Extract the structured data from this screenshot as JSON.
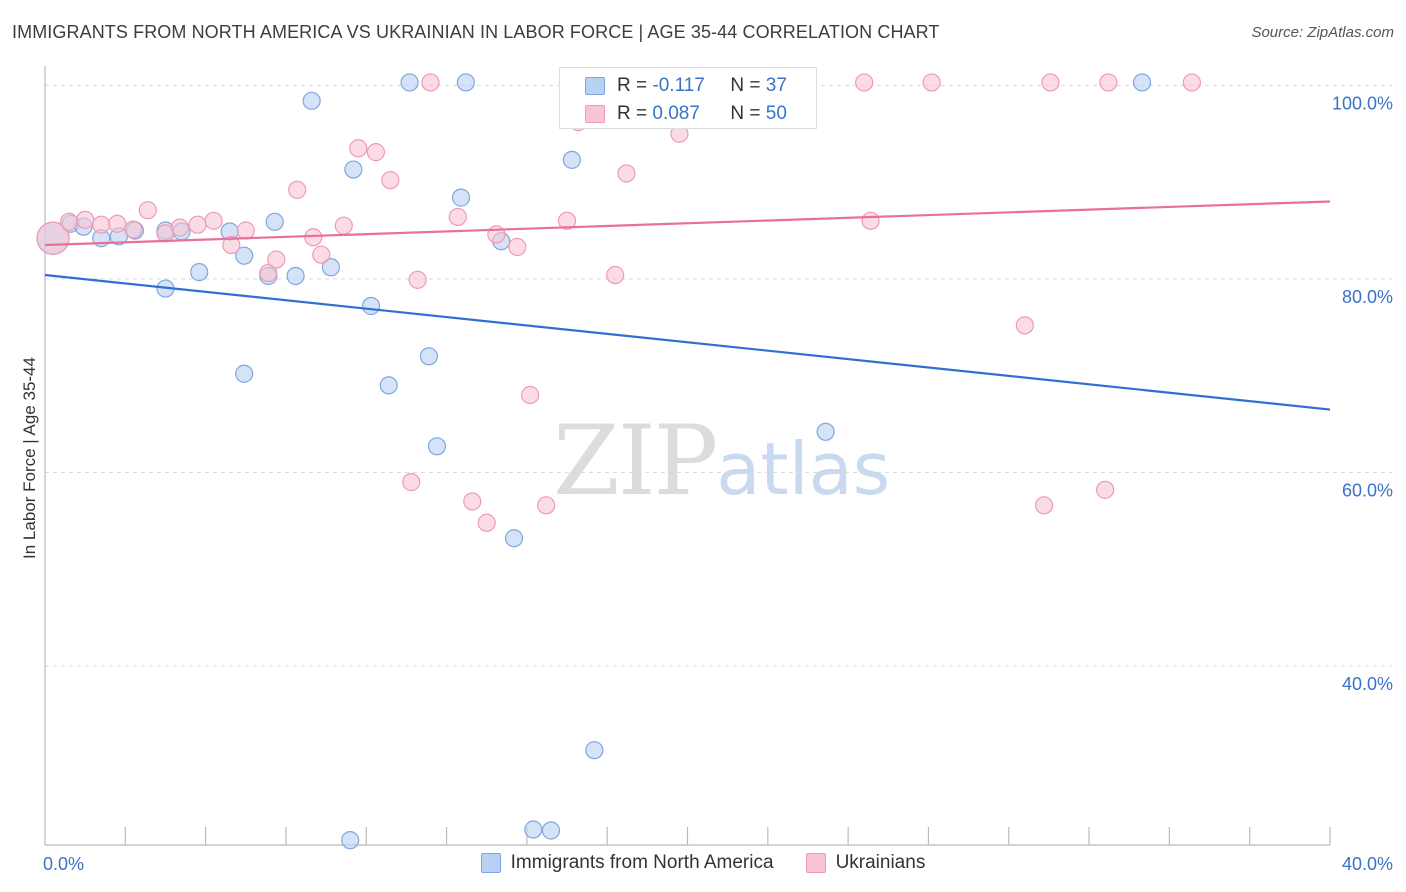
{
  "title": "IMMIGRANTS FROM NORTH AMERICA VS UKRAINIAN IN LABOR FORCE | AGE 35-44 CORRELATION CHART",
  "source": "Source: ZipAtlas.com",
  "watermark": {
    "zip": "ZIP",
    "atlas": "atlas"
  },
  "legend": {
    "r_label": "R =",
    "n_label": "N =",
    "series1": {
      "r": "-0.117",
      "n": "37"
    },
    "series2": {
      "r": "0.087",
      "n": "50"
    }
  },
  "colors": {
    "blue_fill": "#b8d0f2",
    "blue_stroke": "#7fa7de",
    "blue_line": "#2f6fd0",
    "pink_fill": "#f8c5d3",
    "pink_stroke": "#ef9ab5",
    "pink_line": "#e8709a",
    "axis_text": "#3a72c8",
    "grid": "#d8d8d8"
  },
  "chart_data": {
    "type": "scatter",
    "title": "IMMIGRANTS FROM NORTH AMERICA VS UKRAINIAN IN LABOR FORCE | AGE 35-44 CORRELATION CHART",
    "xlabel": "",
    "ylabel": "In Labor Force | Age 35-44",
    "xlim": [
      0,
      40
    ],
    "ylim": [
      21.5,
      102
    ],
    "x_tick_labels": [
      {
        "value": 0,
        "label": "0.0%"
      },
      {
        "value": 40,
        "label": "40.0%"
      }
    ],
    "y_ticks": [
      {
        "value": 100,
        "label": "100.0%"
      },
      {
        "value": 80,
        "label": "80.0%"
      },
      {
        "value": 60,
        "label": "60.0%"
      },
      {
        "value": 40,
        "label": "40.0%"
      }
    ],
    "grid": true,
    "series": [
      {
        "name": "Immigrants from North America",
        "color": "blue",
        "trend": {
          "x": [
            0,
            40
          ],
          "y": [
            80.4,
            66.5
          ]
        },
        "points": [
          {
            "x": 0.25,
            "y": 84.2,
            "big": true
          },
          {
            "x": 0.8,
            "y": 85.7
          },
          {
            "x": 1.2,
            "y": 85.4
          },
          {
            "x": 1.75,
            "y": 84.2
          },
          {
            "x": 2.3,
            "y": 84.4
          },
          {
            "x": 2.8,
            "y": 85.0
          },
          {
            "x": 3.75,
            "y": 85.0
          },
          {
            "x": 4.25,
            "y": 84.9
          },
          {
            "x": 3.75,
            "y": 79.0
          },
          {
            "x": 4.8,
            "y": 80.7
          },
          {
            "x": 5.75,
            "y": 84.9
          },
          {
            "x": 6.2,
            "y": 70.2
          },
          {
            "x": 6.2,
            "y": 82.4
          },
          {
            "x": 6.95,
            "y": 80.3
          },
          {
            "x": 7.15,
            "y": 85.9
          },
          {
            "x": 7.8,
            "y": 80.3
          },
          {
            "x": 8.3,
            "y": 98.4
          },
          {
            "x": 8.9,
            "y": 81.2
          },
          {
            "x": 9.5,
            "y": 22.0
          },
          {
            "x": 9.6,
            "y": 91.3
          },
          {
            "x": 10.15,
            "y": 77.2
          },
          {
            "x": 10.7,
            "y": 69.0
          },
          {
            "x": 11.35,
            "y": 100.3
          },
          {
            "x": 11.95,
            "y": 72.0
          },
          {
            "x": 12.2,
            "y": 62.7
          },
          {
            "x": 12.95,
            "y": 88.4
          },
          {
            "x": 13.1,
            "y": 100.3
          },
          {
            "x": 14.2,
            "y": 83.9
          },
          {
            "x": 14.6,
            "y": 53.2
          },
          {
            "x": 15.2,
            "y": 23.1
          },
          {
            "x": 15.75,
            "y": 23.0
          },
          {
            "x": 16.4,
            "y": 92.3
          },
          {
            "x": 17.1,
            "y": 31.3
          },
          {
            "x": 21.4,
            "y": 100.3
          },
          {
            "x": 24.3,
            "y": 64.2
          },
          {
            "x": 34.15,
            "y": 100.3
          },
          {
            "x": 22.0,
            "y": 100.3
          }
        ]
      },
      {
        "name": "Ukrainians",
        "color": "pink",
        "trend": {
          "x": [
            0,
            40
          ],
          "y": [
            83.5,
            88.0
          ]
        },
        "points": [
          {
            "x": 0.25,
            "y": 84.2,
            "big": true
          },
          {
            "x": 0.75,
            "y": 85.9
          },
          {
            "x": 1.25,
            "y": 86.1
          },
          {
            "x": 1.75,
            "y": 85.6
          },
          {
            "x": 2.25,
            "y": 85.7
          },
          {
            "x": 2.75,
            "y": 85.1
          },
          {
            "x": 3.2,
            "y": 87.1
          },
          {
            "x": 3.75,
            "y": 84.7
          },
          {
            "x": 4.2,
            "y": 85.3
          },
          {
            "x": 4.75,
            "y": 85.6
          },
          {
            "x": 5.25,
            "y": 86.0
          },
          {
            "x": 5.8,
            "y": 83.5
          },
          {
            "x": 6.25,
            "y": 85.0
          },
          {
            "x": 6.95,
            "y": 80.6
          },
          {
            "x": 7.2,
            "y": 82.0
          },
          {
            "x": 7.85,
            "y": 89.2
          },
          {
            "x": 8.35,
            "y": 84.3
          },
          {
            "x": 8.6,
            "y": 82.5
          },
          {
            "x": 9.3,
            "y": 85.5
          },
          {
            "x": 9.75,
            "y": 93.5
          },
          {
            "x": 10.3,
            "y": 93.1
          },
          {
            "x": 10.75,
            "y": 90.2
          },
          {
            "x": 11.4,
            "y": 59.0
          },
          {
            "x": 11.6,
            "y": 79.9
          },
          {
            "x": 12.0,
            "y": 100.3
          },
          {
            "x": 12.85,
            "y": 86.4
          },
          {
            "x": 13.3,
            "y": 57.0
          },
          {
            "x": 13.75,
            "y": 54.8
          },
          {
            "x": 14.05,
            "y": 84.6
          },
          {
            "x": 14.7,
            "y": 83.3
          },
          {
            "x": 15.1,
            "y": 68.0
          },
          {
            "x": 15.6,
            "y": 56.6
          },
          {
            "x": 16.25,
            "y": 86.0
          },
          {
            "x": 16.6,
            "y": 96.2
          },
          {
            "x": 17.75,
            "y": 80.4
          },
          {
            "x": 18.1,
            "y": 90.9
          },
          {
            "x": 18.6,
            "y": 97.2
          },
          {
            "x": 19.75,
            "y": 95.0
          },
          {
            "x": 20.7,
            "y": 100.3
          },
          {
            "x": 23.6,
            "y": 100.3
          },
          {
            "x": 25.5,
            "y": 100.3
          },
          {
            "x": 25.7,
            "y": 86.0
          },
          {
            "x": 27.6,
            "y": 100.3
          },
          {
            "x": 30.5,
            "y": 75.2
          },
          {
            "x": 31.1,
            "y": 56.6
          },
          {
            "x": 31.3,
            "y": 100.3
          },
          {
            "x": 33.1,
            "y": 100.3
          },
          {
            "x": 33.0,
            "y": 58.2
          },
          {
            "x": 35.7,
            "y": 100.3
          },
          {
            "x": 17.2,
            "y": 97.0
          }
        ]
      }
    ]
  }
}
